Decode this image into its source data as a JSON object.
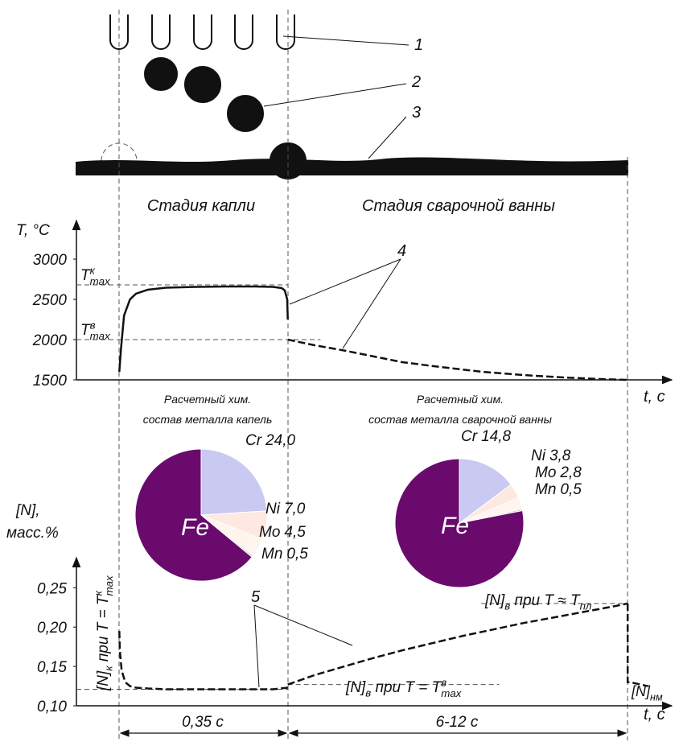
{
  "diagram": {
    "labels": [
      "1",
      "2",
      "3"
    ],
    "stages": [
      "Стадия капли",
      "Стадия сварочной ванны"
    ]
  },
  "chart_data": [
    {
      "type": "line",
      "ylabel": "T, °C",
      "xlabel": "t, с",
      "xlim": [
        0,
        100
      ],
      "ylim": [
        1500,
        3400
      ],
      "yticks": [
        1500,
        2000,
        2500,
        3000
      ],
      "series": [
        {
          "color": "#111111",
          "style": "solid",
          "x": [
            7.2,
            7.5,
            8,
            9,
            10,
            12,
            15,
            20,
            25,
            30,
            33,
            34.5,
            35,
            35.4,
            35.5
          ],
          "values": [
            1600,
            1900,
            2300,
            2500,
            2570,
            2620,
            2645,
            2655,
            2660,
            2660,
            2655,
            2640,
            2610,
            2500,
            2250
          ]
        },
        {
          "color": "#111111",
          "style": "dashed",
          "x": [
            35.5,
            40,
            45.3,
            50,
            54.7,
            60,
            68.2,
            75,
            81.8,
            88,
            92.6
          ],
          "values": [
            2000,
            1930,
            1860,
            1790,
            1720,
            1670,
            1600,
            1560,
            1530,
            1510,
            1500
          ]
        }
      ],
      "ref_lines": [
        {
          "value": 2680,
          "label": [
            {
              "text": "T"
            },
            {
              "sup": "к",
              "sub": "max"
            }
          ]
        },
        {
          "value": 2000,
          "label": [
            {
              "text": "T"
            },
            {
              "sup": "в",
              "sub": "max"
            }
          ]
        }
      ],
      "annotation": "4"
    },
    {
      "type": "pie",
      "title": [
        "Расчетный хим.",
        "состав металла капель"
      ],
      "categories": [
        "Cr",
        "Ni",
        "Mo",
        "Mn",
        "Fe"
      ],
      "values": [
        24.0,
        7.0,
        4.5,
        0.5,
        64.0
      ],
      "value_labels": [
        "24,0",
        "7,0",
        "4,5",
        "0,5",
        null
      ],
      "colors": [
        "#c9c9f2",
        "#fde9e2",
        "#fff4ee",
        "#d8d8d8",
        "#690a6c"
      ]
    },
    {
      "type": "pie",
      "title": [
        "Расчетный хим.",
        "состав металла сварочной ванны"
      ],
      "categories": [
        "Cr",
        "Ni",
        "Mo",
        "Mn",
        "Fe"
      ],
      "values": [
        14.8,
        3.8,
        2.8,
        0.5,
        78.1
      ],
      "value_labels": [
        "14,8",
        "3,8",
        "2,8",
        "0,5",
        null
      ],
      "colors": [
        "#c9c9f2",
        "#fde9e2",
        "#fff4ee",
        "#d8d8d8",
        "#690a6c"
      ]
    },
    {
      "type": "line",
      "ylabel": [
        "[N],",
        "масс.%"
      ],
      "xlabel": "t, с",
      "xlim": [
        0,
        100
      ],
      "ylim": [
        0.1,
        0.28
      ],
      "yticks": [
        {
          "value": 0.1,
          "label": "0,10"
        },
        {
          "value": 0.15,
          "label": "0,15"
        },
        {
          "value": 0.2,
          "label": "0,20"
        },
        {
          "value": 0.25,
          "label": "0,25"
        }
      ],
      "series": [
        {
          "color": "#111111",
          "style": "dashed",
          "x": [
            7.2,
            7.3,
            7.6,
            8.2,
            9,
            10,
            12,
            15,
            20,
            25,
            30,
            33,
            35.5
          ],
          "values": [
            0.195,
            0.17,
            0.145,
            0.13,
            0.125,
            0.123,
            0.122,
            0.121,
            0.121,
            0.121,
            0.121,
            0.121,
            0.123
          ]
        },
        {
          "color": "#111111",
          "style": "dashed",
          "x": [
            35.5,
            40,
            45,
            50,
            55,
            60,
            65,
            70,
            75,
            80,
            85,
            90,
            92.6
          ],
          "values": [
            0.127,
            0.139,
            0.15,
            0.161,
            0.171,
            0.18,
            0.189,
            0.197,
            0.205,
            0.212,
            0.219,
            0.226,
            0.23
          ]
        },
        {
          "color": "#111111",
          "style": "dashed",
          "x": [
            92.6,
            92.6,
            93,
            96
          ],
          "values": [
            0.23,
            0.13,
            0.13,
            0.125
          ],
          "label": [
            {
              "text": "[N]"
            },
            {
              "sub": "нм"
            }
          ]
        }
      ],
      "ref_lines": [
        {
          "value": 0.121,
          "label": [
            {
              "text": "[N]"
            },
            {
              "sub": "к"
            },
            {
              "text": " при T = T"
            },
            {
              "sup": "к",
              "sub": "max"
            }
          ]
        },
        {
          "value": 0.127,
          "label": [
            {
              "text": "[N]"
            },
            {
              "sub": "в"
            },
            {
              "text": " при T = T"
            },
            {
              "sup": "в",
              "sub": "max"
            }
          ]
        },
        {
          "value": 0.23,
          "label": [
            {
              "text": "[N]"
            },
            {
              "sub": "в"
            },
            {
              "text": " при T ≈ T"
            },
            {
              "sub": "пл"
            }
          ]
        }
      ],
      "annotation": "5"
    }
  ],
  "dimensions": [
    "0,35 с",
    "6-12 с"
  ]
}
